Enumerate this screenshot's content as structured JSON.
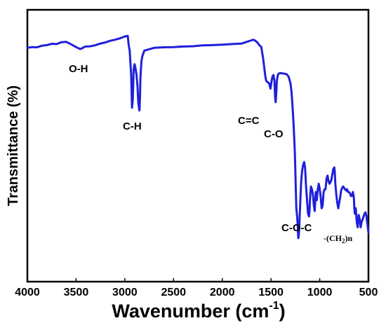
{
  "chart_data": {
    "type": "line",
    "xlabel": "Wavenumber (cm",
    "xlabel_sup": "-1",
    "xlabel_close": ")",
    "ylabel": "Transmittance (%)",
    "xlim": [
      4000,
      500
    ],
    "x_reversed": true,
    "ylim": [
      0,
      100
    ],
    "y_ticks_shown": false,
    "x_ticks": [
      4000,
      3500,
      3000,
      2500,
      2000,
      1500,
      1000,
      500
    ],
    "grid": false,
    "line_color": "#1f1fdc",
    "series": [
      {
        "name": "",
        "x": [
          4000,
          3950,
          3900,
          3850,
          3800,
          3750,
          3700,
          3650,
          3600,
          3550,
          3500,
          3460,
          3440,
          3420,
          3400,
          3350,
          3300,
          3250,
          3200,
          3150,
          3100,
          3050,
          3000,
          2970,
          2960,
          2950,
          2945,
          2935,
          2926,
          2918,
          2910,
          2900,
          2890,
          2880,
          2870,
          2862,
          2855,
          2850,
          2845,
          2840,
          2830,
          2820,
          2800,
          2750,
          2700,
          2650,
          2600,
          2500,
          2400,
          2300,
          2200,
          2100,
          2000,
          1900,
          1800,
          1750,
          1700,
          1680,
          1660,
          1640,
          1620,
          1600,
          1580,
          1560,
          1550,
          1540,
          1520,
          1505,
          1495,
          1485,
          1475,
          1465,
          1458,
          1452,
          1445,
          1440,
          1430,
          1420,
          1400,
          1380,
          1360,
          1340,
          1320,
          1300,
          1290,
          1280,
          1270,
          1262,
          1255,
          1248,
          1240,
          1232,
          1225,
          1220,
          1215,
          1210,
          1200,
          1190,
          1180,
          1170,
          1160,
          1150,
          1140,
          1130,
          1120,
          1110,
          1105,
          1100,
          1095,
          1090,
          1080,
          1070,
          1060,
          1052,
          1045,
          1040,
          1035,
          1030,
          1025,
          1020,
          1010,
          1000,
          990,
          980,
          970,
          960,
          950,
          940,
          930,
          920,
          910,
          900,
          890,
          880,
          870,
          860,
          850,
          845,
          840,
          830,
          820,
          810,
          800,
          790,
          780,
          770,
          760,
          750,
          740,
          730,
          720,
          710,
          700,
          690,
          680,
          670,
          660,
          650,
          645,
          640,
          630,
          620,
          610,
          600,
          590,
          580,
          570,
          560,
          550,
          540,
          530,
          520,
          510,
          500
        ],
        "y": [
          86.0,
          86.3,
          86.2,
          86.8,
          87.0,
          87.5,
          87.4,
          88.1,
          88.2,
          87.3,
          86.3,
          85.6,
          85.8,
          86.3,
          86.5,
          86.6,
          87.0,
          87.6,
          88.0,
          88.6,
          89.0,
          89.5,
          90.2,
          90.4,
          87.0,
          85.0,
          82.0,
          76.0,
          64.0,
          67.0,
          78.0,
          80.0,
          78.5,
          76.0,
          72.0,
          66.0,
          64.0,
          63.0,
          67.0,
          75.0,
          81.0,
          83.0,
          85.0,
          85.5,
          86.0,
          86.1,
          86.2,
          86.3,
          86.5,
          86.6,
          86.9,
          87.0,
          87.2,
          87.4,
          87.6,
          88.2,
          88.8,
          89.0,
          88.6,
          88.0,
          87.0,
          86.3,
          82.0,
          76.0,
          74.0,
          73.5,
          73.0,
          71.0,
          73.5,
          75.5,
          76.0,
          74.0,
          68.0,
          66.0,
          70.0,
          74.0,
          76.0,
          76.6,
          76.7,
          76.6,
          76.5,
          76.3,
          75.5,
          73.0,
          70.0,
          65.0,
          59.0,
          53.0,
          47.0,
          38.0,
          27.0,
          24.0,
          20.0,
          16.0,
          17.0,
          20.0,
          29.0,
          37.0,
          41.0,
          43.0,
          44.0,
          42.0,
          35.0,
          30.0,
          25.0,
          24.0,
          26.0,
          30.0,
          33.0,
          35.0,
          34.0,
          32.0,
          28.0,
          26.0,
          30.0,
          33.0,
          31.0,
          30.0,
          32.0,
          34.0,
          36.0,
          34.0,
          31.0,
          27.0,
          28.0,
          33.0,
          34.0,
          34.0,
          38.0,
          39.0,
          37.0,
          36.0,
          36.5,
          37.5,
          39.5,
          41.5,
          42.0,
          40.0,
          36.0,
          32.0,
          29.0,
          27.0,
          29.0,
          31.0,
          33.5,
          34.5,
          35.0,
          34.5,
          34.0,
          33.5,
          34.0,
          33.0,
          33.0,
          32.5,
          31.5,
          31.5,
          33.0,
          31.0,
          27.0,
          25.0,
          27.0,
          22.0,
          20.0,
          24.5,
          23.0,
          20.0,
          22.0,
          23.0,
          24.0,
          25.0,
          25.5,
          24.0,
          21.0,
          18.0
        ]
      }
    ],
    "annotations": [
      {
        "text": "O-H",
        "sub": ""
      },
      {
        "text": "C-H",
        "sub": ""
      },
      {
        "text": "C=C",
        "sub": ""
      },
      {
        "text": "C-O",
        "sub": ""
      },
      {
        "text": "C-O-C",
        "sub": "-(CH2)n"
      }
    ]
  }
}
